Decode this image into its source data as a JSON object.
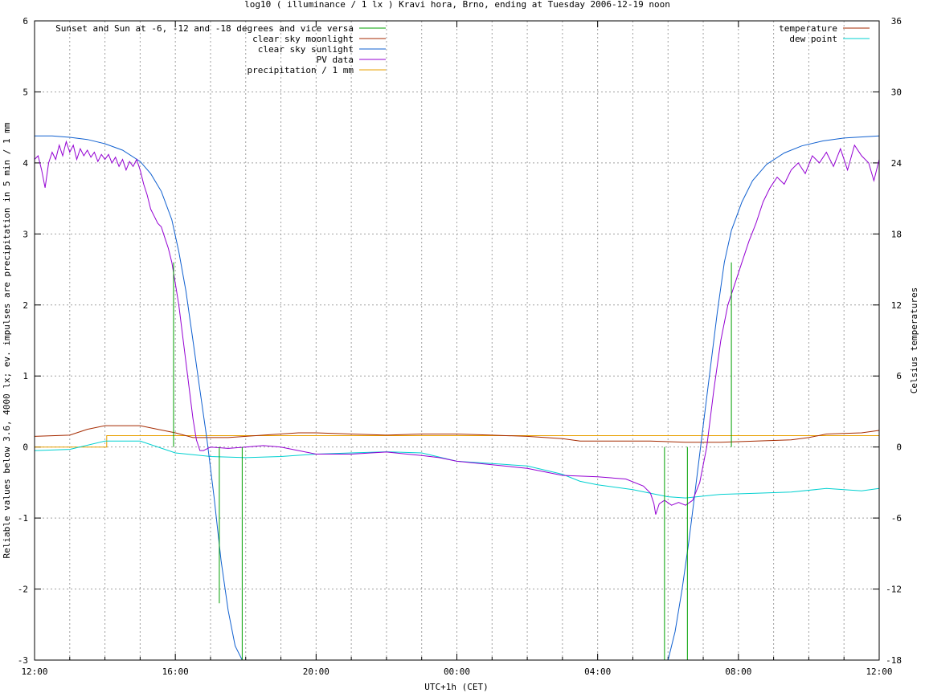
{
  "chart_data": {
    "type": "line",
    "title": "log10 ( illuminance / 1 lx ) Kravi hora, Brno, ending at Tuesday 2006-12-19 noon",
    "xlabel": "UTC+1h (CET)",
    "ylabel": "Reliable values below 3.6, 4000 lx; ev. impulses are precipitation in 5 min / 1 mm",
    "y2label": "Celsius temperatures",
    "x_unit": "hours since 12:00",
    "xlim": [
      0,
      24
    ],
    "ylim": [
      -3,
      6
    ],
    "y2lim": [
      -18,
      36
    ],
    "grid": true,
    "legend_left_position": "top-left",
    "legend_right_position": "top-right",
    "x_ticks": [
      {
        "v": 0,
        "label": "12:00"
      },
      {
        "v": 4,
        "label": "16:00"
      },
      {
        "v": 8,
        "label": "20:00"
      },
      {
        "v": 12,
        "label": "00:00"
      },
      {
        "v": 16,
        "label": "04:00"
      },
      {
        "v": 20,
        "label": "08:00"
      },
      {
        "v": 24,
        "label": "12:00"
      }
    ],
    "y_ticks": [
      {
        "v": -3,
        "label": "-3"
      },
      {
        "v": -2,
        "label": "-2"
      },
      {
        "v": -1,
        "label": "-1"
      },
      {
        "v": 0,
        "label": "0"
      },
      {
        "v": 1,
        "label": "1"
      },
      {
        "v": 2,
        "label": "2"
      },
      {
        "v": 3,
        "label": "3"
      },
      {
        "v": 4,
        "label": "4"
      },
      {
        "v": 5,
        "label": "5"
      },
      {
        "v": 6,
        "label": "6"
      }
    ],
    "y2_ticks": [
      {
        "v": -18,
        "label": "-18"
      },
      {
        "v": -12,
        "label": "-12"
      },
      {
        "v": -6,
        "label": "-6"
      },
      {
        "v": 0,
        "label": "0"
      },
      {
        "v": 6,
        "label": "6"
      },
      {
        "v": 12,
        "label": "12"
      },
      {
        "v": 18,
        "label": "18"
      },
      {
        "v": 24,
        "label": "24"
      },
      {
        "v": 30,
        "label": "30"
      },
      {
        "v": 36,
        "label": "36"
      }
    ],
    "series": [
      {
        "name": "Sunset and Sun at -6, -12 and -18 degrees and vice versa",
        "key": "sun_markers",
        "color": "#00a000",
        "axis": "left",
        "style": "impulses",
        "impulses": [
          [
            3.95,
            2.6
          ],
          [
            4.6,
            0
          ],
          [
            5.25,
            -2.2
          ],
          [
            5.9,
            -3
          ],
          [
            17.9,
            -3
          ],
          [
            18.55,
            -3
          ],
          [
            19.8,
            2.6
          ]
        ]
      },
      {
        "name": "clear sky moonlight",
        "key": "moonlight",
        "color": "#a52a00",
        "axis": "left",
        "style": "line",
        "points": []
      },
      {
        "name": "clear sky sunlight",
        "key": "sunlight",
        "color": "#1060d0",
        "axis": "left",
        "style": "line",
        "points": [
          [
            0,
            4.38
          ],
          [
            0.5,
            4.38
          ],
          [
            1,
            4.36
          ],
          [
            1.5,
            4.33
          ],
          [
            2,
            4.27
          ],
          [
            2.5,
            4.18
          ],
          [
            3,
            4.02
          ],
          [
            3.3,
            3.85
          ],
          [
            3.6,
            3.6
          ],
          [
            3.9,
            3.2
          ],
          [
            4.1,
            2.75
          ],
          [
            4.3,
            2.2
          ],
          [
            4.5,
            1.5
          ],
          [
            4.7,
            0.8
          ],
          [
            4.9,
            0.1
          ],
          [
            5.1,
            -0.7
          ],
          [
            5.3,
            -1.6
          ],
          [
            5.5,
            -2.3
          ],
          [
            5.7,
            -2.8
          ],
          [
            5.9,
            -3.0
          ],
          [
            18.0,
            -3.0
          ],
          [
            18.2,
            -2.6
          ],
          [
            18.4,
            -2.0
          ],
          [
            18.6,
            -1.3
          ],
          [
            18.8,
            -0.5
          ],
          [
            19.0,
            0.3
          ],
          [
            19.2,
            1.1
          ],
          [
            19.4,
            1.9
          ],
          [
            19.6,
            2.6
          ],
          [
            19.8,
            3.05
          ],
          [
            20.1,
            3.45
          ],
          [
            20.4,
            3.75
          ],
          [
            20.8,
            3.98
          ],
          [
            21.3,
            4.14
          ],
          [
            21.8,
            4.24
          ],
          [
            22.4,
            4.31
          ],
          [
            23.0,
            4.35
          ],
          [
            24,
            4.38
          ]
        ]
      },
      {
        "name": "PV data",
        "key": "pv",
        "color": "#9400d3",
        "axis": "left",
        "style": "line",
        "points": [
          [
            0,
            4.05
          ],
          [
            0.1,
            4.1
          ],
          [
            0.2,
            3.9
          ],
          [
            0.3,
            3.65
          ],
          [
            0.4,
            4.0
          ],
          [
            0.5,
            4.15
          ],
          [
            0.6,
            4.05
          ],
          [
            0.7,
            4.25
          ],
          [
            0.8,
            4.1
          ],
          [
            0.9,
            4.3
          ],
          [
            1.0,
            4.15
          ],
          [
            1.1,
            4.25
          ],
          [
            1.2,
            4.05
          ],
          [
            1.3,
            4.2
          ],
          [
            1.4,
            4.1
          ],
          [
            1.5,
            4.18
          ],
          [
            1.6,
            4.08
          ],
          [
            1.7,
            4.15
          ],
          [
            1.8,
            4.02
          ],
          [
            1.9,
            4.12
          ],
          [
            2.0,
            4.05
          ],
          [
            2.1,
            4.12
          ],
          [
            2.2,
            4.0
          ],
          [
            2.3,
            4.08
          ],
          [
            2.4,
            3.95
          ],
          [
            2.5,
            4.05
          ],
          [
            2.6,
            3.9
          ],
          [
            2.7,
            4.02
          ],
          [
            2.8,
            3.95
          ],
          [
            2.9,
            4.05
          ],
          [
            3.0,
            3.9
          ],
          [
            3.1,
            3.7
          ],
          [
            3.2,
            3.55
          ],
          [
            3.3,
            3.35
          ],
          [
            3.4,
            3.25
          ],
          [
            3.5,
            3.15
          ],
          [
            3.6,
            3.1
          ],
          [
            3.7,
            2.95
          ],
          [
            3.8,
            2.8
          ],
          [
            3.9,
            2.6
          ],
          [
            4.0,
            2.3
          ],
          [
            4.1,
            2.0
          ],
          [
            4.2,
            1.6
          ],
          [
            4.3,
            1.2
          ],
          [
            4.4,
            0.8
          ],
          [
            4.5,
            0.4
          ],
          [
            4.6,
            0.1
          ],
          [
            4.7,
            -0.05
          ],
          [
            4.8,
            -0.05
          ],
          [
            5.0,
            0.0
          ],
          [
            5.5,
            -0.02
          ],
          [
            6.0,
            0.0
          ],
          [
            6.5,
            0.02
          ],
          [
            7.0,
            0.0
          ],
          [
            7.5,
            -0.05
          ],
          [
            8.0,
            -0.1
          ],
          [
            9.0,
            -0.1
          ],
          [
            10.0,
            -0.07
          ],
          [
            11.0,
            -0.12
          ],
          [
            11.5,
            -0.15
          ],
          [
            12.0,
            -0.2
          ],
          [
            13.0,
            -0.25
          ],
          [
            14.0,
            -0.3
          ],
          [
            14.5,
            -0.35
          ],
          [
            15.0,
            -0.4
          ],
          [
            16.0,
            -0.42
          ],
          [
            16.8,
            -0.45
          ],
          [
            17.3,
            -0.55
          ],
          [
            17.5,
            -0.65
          ],
          [
            17.6,
            -0.8
          ],
          [
            17.65,
            -0.95
          ],
          [
            17.75,
            -0.8
          ],
          [
            17.9,
            -0.75
          ],
          [
            18.1,
            -0.82
          ],
          [
            18.3,
            -0.78
          ],
          [
            18.5,
            -0.82
          ],
          [
            18.7,
            -0.75
          ],
          [
            18.9,
            -0.5
          ],
          [
            19.1,
            0.0
          ],
          [
            19.3,
            0.8
          ],
          [
            19.5,
            1.5
          ],
          [
            19.7,
            2.0
          ],
          [
            19.9,
            2.3
          ],
          [
            20.1,
            2.6
          ],
          [
            20.3,
            2.9
          ],
          [
            20.5,
            3.15
          ],
          [
            20.7,
            3.45
          ],
          [
            20.9,
            3.65
          ],
          [
            21.1,
            3.8
          ],
          [
            21.3,
            3.7
          ],
          [
            21.5,
            3.9
          ],
          [
            21.7,
            4.0
          ],
          [
            21.9,
            3.85
          ],
          [
            22.1,
            4.1
          ],
          [
            22.3,
            4.0
          ],
          [
            22.5,
            4.15
          ],
          [
            22.7,
            3.95
          ],
          [
            22.9,
            4.2
          ],
          [
            23.1,
            3.9
          ],
          [
            23.3,
            4.25
          ],
          [
            23.5,
            4.1
          ],
          [
            23.7,
            4.0
          ],
          [
            23.85,
            3.75
          ],
          [
            24.0,
            4.05
          ]
        ]
      },
      {
        "name": "precipitation / 1 mm",
        "key": "precip",
        "color": "#e8a000",
        "axis": "left",
        "style": "line",
        "points": [
          [
            0,
            0.0
          ],
          [
            2.05,
            0.0
          ],
          [
            2.05,
            0.16
          ],
          [
            24,
            0.16
          ]
        ]
      },
      {
        "name": "temperature",
        "key": "temperature",
        "color": "#a52a00",
        "axis": "right",
        "style": "line",
        "points": [
          [
            0,
            0.9
          ],
          [
            1,
            1.0
          ],
          [
            1.5,
            1.5
          ],
          [
            2,
            1.8
          ],
          [
            2.5,
            1.8
          ],
          [
            3,
            1.8
          ],
          [
            3.5,
            1.5
          ],
          [
            4,
            1.2
          ],
          [
            4.5,
            0.8
          ],
          [
            5.5,
            0.8
          ],
          [
            6.5,
            1.0
          ],
          [
            7.5,
            1.2
          ],
          [
            8,
            1.2
          ],
          [
            9,
            1.1
          ],
          [
            10,
            1.0
          ],
          [
            11,
            1.1
          ],
          [
            12,
            1.1
          ],
          [
            13,
            1.0
          ],
          [
            14,
            0.9
          ],
          [
            15,
            0.7
          ],
          [
            15.5,
            0.5
          ],
          [
            16.5,
            0.5
          ],
          [
            17.5,
            0.5
          ],
          [
            18.5,
            0.4
          ],
          [
            19.5,
            0.4
          ],
          [
            20.5,
            0.5
          ],
          [
            21.5,
            0.6
          ],
          [
            22.0,
            0.8
          ],
          [
            22.5,
            1.1
          ],
          [
            23.5,
            1.2
          ],
          [
            24,
            1.4
          ]
        ]
      },
      {
        "name": "dew point",
        "key": "dewpoint",
        "color": "#00d0d0",
        "axis": "right",
        "style": "line",
        "points": [
          [
            0,
            -0.3
          ],
          [
            1,
            -0.2
          ],
          [
            2,
            0.5
          ],
          [
            3,
            0.5
          ],
          [
            4,
            -0.5
          ],
          [
            5,
            -0.8
          ],
          [
            6,
            -0.9
          ],
          [
            7,
            -0.8
          ],
          [
            8,
            -0.6
          ],
          [
            9,
            -0.5
          ],
          [
            10,
            -0.4
          ],
          [
            11,
            -0.5
          ],
          [
            12,
            -1.2
          ],
          [
            13,
            -1.4
          ],
          [
            14,
            -1.6
          ],
          [
            15,
            -2.3
          ],
          [
            15.5,
            -2.9
          ],
          [
            16,
            -3.2
          ],
          [
            17,
            -3.6
          ],
          [
            17.5,
            -3.9
          ],
          [
            18,
            -4.2
          ],
          [
            18.5,
            -4.3
          ],
          [
            19.5,
            -4.0
          ],
          [
            20.5,
            -3.9
          ],
          [
            21.5,
            -3.8
          ],
          [
            22.5,
            -3.5
          ],
          [
            23.5,
            -3.7
          ],
          [
            24,
            -3.5
          ]
        ]
      }
    ]
  }
}
